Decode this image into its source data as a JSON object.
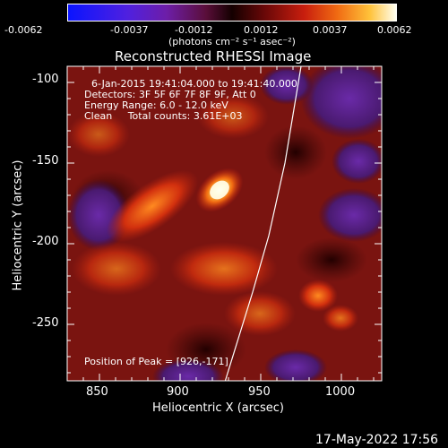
{
  "colorbar": {
    "tick_labels": [
      "-0.0062",
      "-0.0037",
      "-0.0012",
      "0.0012",
      "0.0037",
      "0.0062"
    ],
    "unit_label": "(photons cm⁻² s⁻¹ asec⁻²)",
    "range": [
      -0.0062,
      0.0062
    ]
  },
  "title": "Reconstructed RHESSI Image",
  "info": {
    "time_range": "6-Jan-2015 19:41:04.000 to 19:41:40.000",
    "detectors": "Detectors: 3F 5F 6F 7F 8F 9F, Att 0",
    "energy": "Energy Range: 6.0 - 12.0 keV",
    "clean": "Clean     Total counts: 3.61E+03"
  },
  "peak_label": "Position of Peak = [926,-171]",
  "x_axis": {
    "label": "Heliocentric X (arcsec)",
    "ticks": [
      "850",
      "900",
      "950",
      "1000"
    ],
    "range": [
      830,
      1025
    ]
  },
  "y_axis": {
    "label": "Heliocentric Y (arcsec)",
    "ticks": [
      "-100",
      "-150",
      "-200",
      "-250"
    ],
    "range": [
      -285,
      -90
    ]
  },
  "timestamp": "17-May-2022 17:56",
  "peak": {
    "x": 926,
    "y": -171
  },
  "limb_points": [
    [
      928,
      -285
    ],
    [
      945,
      -230
    ],
    [
      955,
      -195
    ],
    [
      965,
      -150
    ],
    [
      975,
      -90
    ]
  ],
  "colors": {
    "background": "#000000",
    "axis": "#ffffff",
    "limb": "#ffffff"
  }
}
